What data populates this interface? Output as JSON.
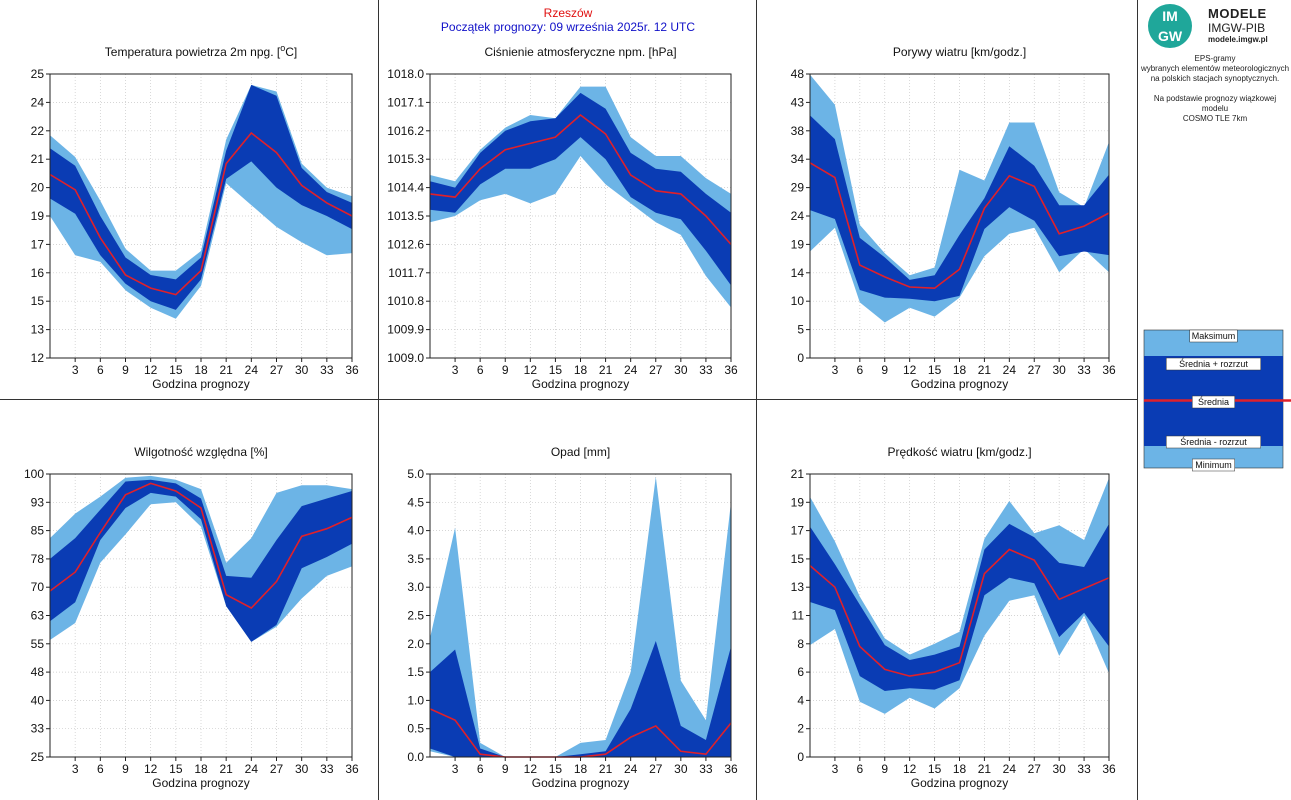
{
  "header": {
    "station": "Rzeszów",
    "forecast_start": "Początek prognozy: 09 września 2025r. 12 UTC"
  },
  "logo": {
    "badge_top": "IM",
    "badge_bottom": "GW",
    "title": "MODELE",
    "org": "IMGW-PIB",
    "url": "modele.imgw.pl"
  },
  "description": {
    "line1": "EPS-gramy",
    "line2": "wybranych elementów meteorologicznych",
    "line3": "na polskich stacjach  synoptycznych.",
    "line4": "Na podstawie prognozy wiązkowej modelu",
    "line5": "COSMO TLE 7km"
  },
  "colors": {
    "light": "#6cb4e6",
    "dark": "#0a3cb4",
    "mean": "#e0202a",
    "grid": "#c8c8c8",
    "frame": "#222222"
  },
  "legend": {
    "max": "Maksimum",
    "mean_plus": "Średnia + rozrzut",
    "mean": "Średnia",
    "mean_minus": "Średnia - rozrzut",
    "min": "Minimum"
  },
  "chart_data": [
    {
      "type": "area",
      "title_main": "Temperatura powietrza 2m npg. [",
      "title_sup": "o",
      "title_end": "C]",
      "xlabel": "Godzina prognozy",
      "yticks": [
        "25",
        "24",
        "22",
        "21",
        "20",
        "19",
        "17",
        "16",
        "15",
        "13",
        "12"
      ],
      "ylim": [
        12,
        25
      ],
      "x": [
        0,
        3,
        6,
        9,
        12,
        15,
        18,
        21,
        24,
        27,
        30,
        33,
        36
      ],
      "xticks": [
        "3",
        "6",
        "9",
        "12",
        "15",
        "18",
        "21",
        "24",
        "27",
        "30",
        "33",
        "36"
      ],
      "max": [
        22.2,
        21.2,
        19.2,
        17.0,
        16.0,
        16.0,
        16.9,
        22.0,
        24.5,
        24.2,
        20.9,
        19.8,
        19.4
      ],
      "mean_plus": [
        21.6,
        20.8,
        18.5,
        16.6,
        15.8,
        15.6,
        16.6,
        21.5,
        24.5,
        24.0,
        20.7,
        19.6,
        19.1
      ],
      "mean": [
        20.4,
        19.7,
        17.5,
        15.8,
        15.2,
        14.9,
        16.0,
        20.9,
        22.3,
        21.4,
        19.9,
        19.1,
        18.5
      ],
      "mean_minus": [
        19.3,
        18.6,
        16.7,
        15.4,
        14.6,
        14.2,
        15.6,
        20.2,
        21.0,
        19.8,
        19.0,
        18.5,
        17.9
      ],
      "min": [
        18.5,
        16.7,
        16.4,
        15.1,
        14.3,
        13.8,
        15.3,
        20.0,
        19.0,
        18.0,
        17.3,
        16.7,
        16.8
      ]
    },
    {
      "type": "area",
      "title_main": "Ciśnienie atmosferyczne npm. [hPa]",
      "title_sup": "",
      "title_end": "",
      "xlabel": "Godzina prognozy",
      "yticks": [
        "1018.0",
        "1017.1",
        "1016.2",
        "1015.3",
        "1014.4",
        "1013.5",
        "1012.6",
        "1011.7",
        "1010.8",
        "1009.9",
        "1009.0"
      ],
      "ylim": [
        1009.0,
        1018.0
      ],
      "x": [
        0,
        3,
        6,
        9,
        12,
        15,
        18,
        21,
        24,
        27,
        30,
        33,
        36
      ],
      "xticks": [
        "3",
        "6",
        "9",
        "12",
        "15",
        "18",
        "21",
        "24",
        "27",
        "30",
        "33",
        "36"
      ],
      "max": [
        1014.8,
        1014.6,
        1015.6,
        1016.3,
        1016.7,
        1016.6,
        1017.6,
        1017.6,
        1016.0,
        1015.4,
        1015.4,
        1014.7,
        1014.2
      ],
      "mean_plus": [
        1014.6,
        1014.4,
        1015.5,
        1016.2,
        1016.5,
        1016.6,
        1017.4,
        1016.9,
        1015.5,
        1015.0,
        1014.9,
        1014.2,
        1013.6
      ],
      "mean": [
        1014.2,
        1014.1,
        1015.0,
        1015.6,
        1015.8,
        1016.0,
        1016.7,
        1016.1,
        1014.8,
        1014.3,
        1014.2,
        1013.5,
        1012.6
      ],
      "mean_minus": [
        1013.7,
        1013.6,
        1014.5,
        1015.0,
        1015.0,
        1015.3,
        1016.0,
        1015.3,
        1014.1,
        1013.6,
        1013.4,
        1012.4,
        1011.3
      ],
      "min": [
        1013.3,
        1013.5,
        1014.0,
        1014.2,
        1013.9,
        1014.2,
        1015.4,
        1014.5,
        1013.9,
        1013.3,
        1012.9,
        1011.6,
        1010.6
      ]
    },
    {
      "type": "area",
      "title_main": "Porywy wiatru [km/godz.]",
      "title_sup": "",
      "title_end": "",
      "xlabel": "Godzina prognozy",
      "yticks": [
        "48",
        "43",
        "38",
        "34",
        "29",
        "24",
        "19",
        "14",
        "10",
        "5",
        "0"
      ],
      "ylim": [
        0,
        48
      ],
      "x": [
        0,
        3,
        6,
        9,
        12,
        15,
        18,
        21,
        24,
        27,
        30,
        33,
        36
      ],
      "xticks": [
        "3",
        "6",
        "9",
        "12",
        "15",
        "18",
        "21",
        "24",
        "27",
        "30",
        "33",
        "36"
      ],
      "max": [
        47.9,
        42.8,
        22.5,
        17.7,
        14.0,
        15.3,
        31.8,
        30.0,
        39.8,
        39.8,
        28.0,
        25.5,
        36.5
      ],
      "mean_plus": [
        41.0,
        37.0,
        20.3,
        17.0,
        13.2,
        14.0,
        20.8,
        27.0,
        35.8,
        32.5,
        25.8,
        25.8,
        31.0
      ],
      "mean": [
        33.0,
        30.5,
        15.7,
        13.7,
        12.0,
        11.8,
        15.0,
        25.3,
        30.8,
        29.0,
        21.0,
        22.3,
        24.5
      ],
      "mean_minus": [
        25.0,
        23.5,
        11.5,
        10.2,
        10.0,
        9.6,
        10.5,
        21.8,
        25.5,
        23.2,
        17.2,
        18.0,
        17.4
      ],
      "min": [
        18.0,
        22.0,
        9.4,
        6.0,
        8.5,
        7.0,
        10.2,
        17.2,
        21.0,
        22.0,
        14.5,
        18.4,
        14.5
      ]
    },
    {
      "type": "area",
      "title_main": "Wilgotność względna [%]",
      "title_sup": "",
      "title_end": "",
      "xlabel": "Godzina prognozy",
      "yticks": [
        "100",
        "93",
        "85",
        "78",
        "70",
        "63",
        "55",
        "48",
        "40",
        "33",
        "25"
      ],
      "ylim": [
        25,
        100
      ],
      "x": [
        0,
        3,
        6,
        9,
        12,
        15,
        18,
        21,
        24,
        27,
        30,
        33,
        36
      ],
      "xticks": [
        "3",
        "6",
        "9",
        "12",
        "15",
        "18",
        "21",
        "24",
        "27",
        "30",
        "33",
        "36"
      ],
      "max": [
        83.0,
        89.5,
        94.0,
        99.0,
        99.5,
        98.5,
        96.0,
        76.5,
        83.0,
        95.0,
        97.0,
        97.0,
        96.0
      ],
      "mean_plus": [
        77.5,
        83.0,
        90.5,
        98.0,
        98.5,
        97.5,
        93.5,
        73.0,
        72.5,
        82.5,
        91.5,
        93.5,
        95.5
      ],
      "mean": [
        69.0,
        74.0,
        84.5,
        94.5,
        97.5,
        95.5,
        91.0,
        68.0,
        64.5,
        71.5,
        83.5,
        85.5,
        88.5
      ],
      "mean_minus": [
        61.0,
        66.0,
        82.5,
        91.0,
        95.0,
        94.0,
        88.0,
        65.0,
        55.5,
        60.0,
        75.0,
        78.0,
        81.5
      ],
      "min": [
        56.0,
        60.5,
        76.5,
        84.0,
        92.0,
        92.5,
        86.0,
        65.0,
        55.5,
        59.5,
        67.0,
        73.0,
        75.5
      ]
    },
    {
      "type": "area",
      "title_main": "Opad [mm]",
      "title_sup": "",
      "title_end": "",
      "xlabel": "Godzina prognozy",
      "yticks": [
        "5.0",
        "4.5",
        "4.0",
        "3.5",
        "3.0",
        "2.5",
        "2.0",
        "1.5",
        "1.0",
        "0.5",
        "0.0"
      ],
      "ylim": [
        0,
        5
      ],
      "x": [
        0,
        3,
        6,
        9,
        12,
        15,
        18,
        21,
        24,
        27,
        30,
        33,
        36
      ],
      "xticks": [
        "3",
        "6",
        "9",
        "12",
        "15",
        "18",
        "21",
        "24",
        "27",
        "30",
        "33",
        "36"
      ],
      "max": [
        2.1,
        4.05,
        0.25,
        0.0,
        0.0,
        0.0,
        0.25,
        0.3,
        1.5,
        4.95,
        1.35,
        0.65,
        4.5
      ],
      "mean_plus": [
        1.5,
        1.9,
        0.15,
        0.0,
        0.0,
        0.0,
        0.05,
        0.1,
        0.85,
        2.05,
        0.55,
        0.3,
        1.95
      ],
      "mean": [
        0.85,
        0.65,
        0.05,
        0.0,
        0.0,
        0.0,
        0.0,
        0.05,
        0.35,
        0.55,
        0.1,
        0.05,
        0.6
      ],
      "mean_minus": [
        0.15,
        0.0,
        0.0,
        0.0,
        0.0,
        0.0,
        0.0,
        0.0,
        0.0,
        0.0,
        0.0,
        0.0,
        0.0
      ],
      "min": [
        0.1,
        0.0,
        0.0,
        0.0,
        0.0,
        0.0,
        0.0,
        0.0,
        0.0,
        0.0,
        0.0,
        0.0,
        0.0
      ]
    },
    {
      "type": "area",
      "title_main": "Prędkość wiatru [km/godz.]",
      "title_sup": "",
      "title_end": "",
      "xlabel": "Godzina prognozy",
      "yticks": [
        "21",
        "19",
        "17",
        "15",
        "13",
        "11",
        "8",
        "6",
        "4",
        "2",
        "0"
      ],
      "ylim": [
        0,
        21
      ],
      "x": [
        0,
        3,
        6,
        9,
        12,
        15,
        18,
        21,
        24,
        27,
        30,
        33,
        36
      ],
      "xticks": [
        "3",
        "6",
        "9",
        "12",
        "15",
        "18",
        "21",
        "24",
        "27",
        "30",
        "33",
        "36"
      ],
      "max": [
        19.3,
        16.0,
        11.9,
        8.8,
        7.6,
        8.4,
        9.3,
        16.2,
        19.0,
        16.6,
        17.2,
        16.1,
        20.7
      ],
      "mean_plus": [
        17.1,
        14.3,
        11.3,
        8.3,
        7.2,
        7.6,
        8.2,
        15.4,
        17.3,
        16.3,
        14.4,
        14.1,
        17.3
      ],
      "mean": [
        14.2,
        12.6,
        8.2,
        6.5,
        6.0,
        6.3,
        7.0,
        13.6,
        15.4,
        14.6,
        11.7,
        12.5,
        13.3
      ],
      "mean_minus": [
        11.5,
        10.9,
        6.0,
        4.9,
        5.1,
        5.0,
        5.7,
        12.0,
        13.3,
        12.9,
        8.9,
        10.7,
        8.2
      ],
      "min": [
        8.3,
        9.5,
        4.1,
        3.2,
        4.4,
        3.6,
        5.1,
        9.0,
        11.6,
        12.0,
        7.5,
        10.5,
        6.2
      ]
    }
  ]
}
